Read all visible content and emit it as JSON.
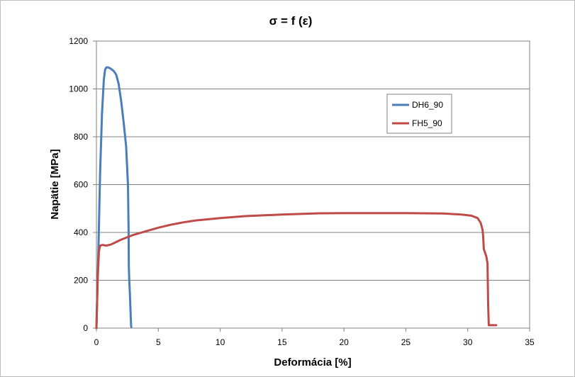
{
  "chart_data": {
    "type": "line",
    "title": "σ = f (ε)",
    "xlabel": "Deformácia [%]",
    "ylabel": "Napätie [MPa]",
    "xlim": [
      0,
      35
    ],
    "ylim": [
      0,
      1200
    ],
    "xticks": [
      0,
      5,
      10,
      15,
      20,
      25,
      30,
      35
    ],
    "yticks": [
      0,
      200,
      400,
      600,
      800,
      1000,
      1200
    ],
    "grid": "horizontal",
    "legend_position": "right",
    "series": [
      {
        "name": "DH6_90",
        "color": "#4a7ebb",
        "x": [
          0.0,
          0.15,
          0.3,
          0.45,
          0.6,
          0.7,
          0.8,
          0.95,
          1.15,
          1.4,
          1.6,
          1.8,
          2.0,
          2.2,
          2.4,
          2.55,
          2.6,
          2.62,
          2.65,
          2.7,
          2.75,
          2.8,
          2.82
        ],
        "y": [
          0,
          300,
          650,
          900,
          1040,
          1080,
          1090,
          1090,
          1085,
          1075,
          1060,
          1020,
          950,
          860,
          760,
          600,
          400,
          260,
          200,
          150,
          80,
          10,
          5
        ]
      },
      {
        "name": "FH5_90",
        "color": "#be4b48",
        "x": [
          0.0,
          0.1,
          0.2,
          0.3,
          0.5,
          0.8,
          1.2,
          2.0,
          3.0,
          4.0,
          5.0,
          6.0,
          7.0,
          8.0,
          10.0,
          12.0,
          15.0,
          18.0,
          20.0,
          22.0,
          25.0,
          28.0,
          29.5,
          30.3,
          30.8,
          31.05,
          31.2,
          31.25,
          31.3,
          31.5,
          31.6,
          31.65,
          31.7,
          32.0,
          32.3
        ],
        "y": [
          0,
          200,
          320,
          345,
          348,
          345,
          350,
          370,
          390,
          405,
          420,
          432,
          442,
          450,
          460,
          468,
          475,
          480,
          481,
          481,
          481,
          479,
          475,
          470,
          460,
          440,
          410,
          380,
          330,
          300,
          270,
          100,
          12,
          12,
          12
        ]
      }
    ]
  }
}
